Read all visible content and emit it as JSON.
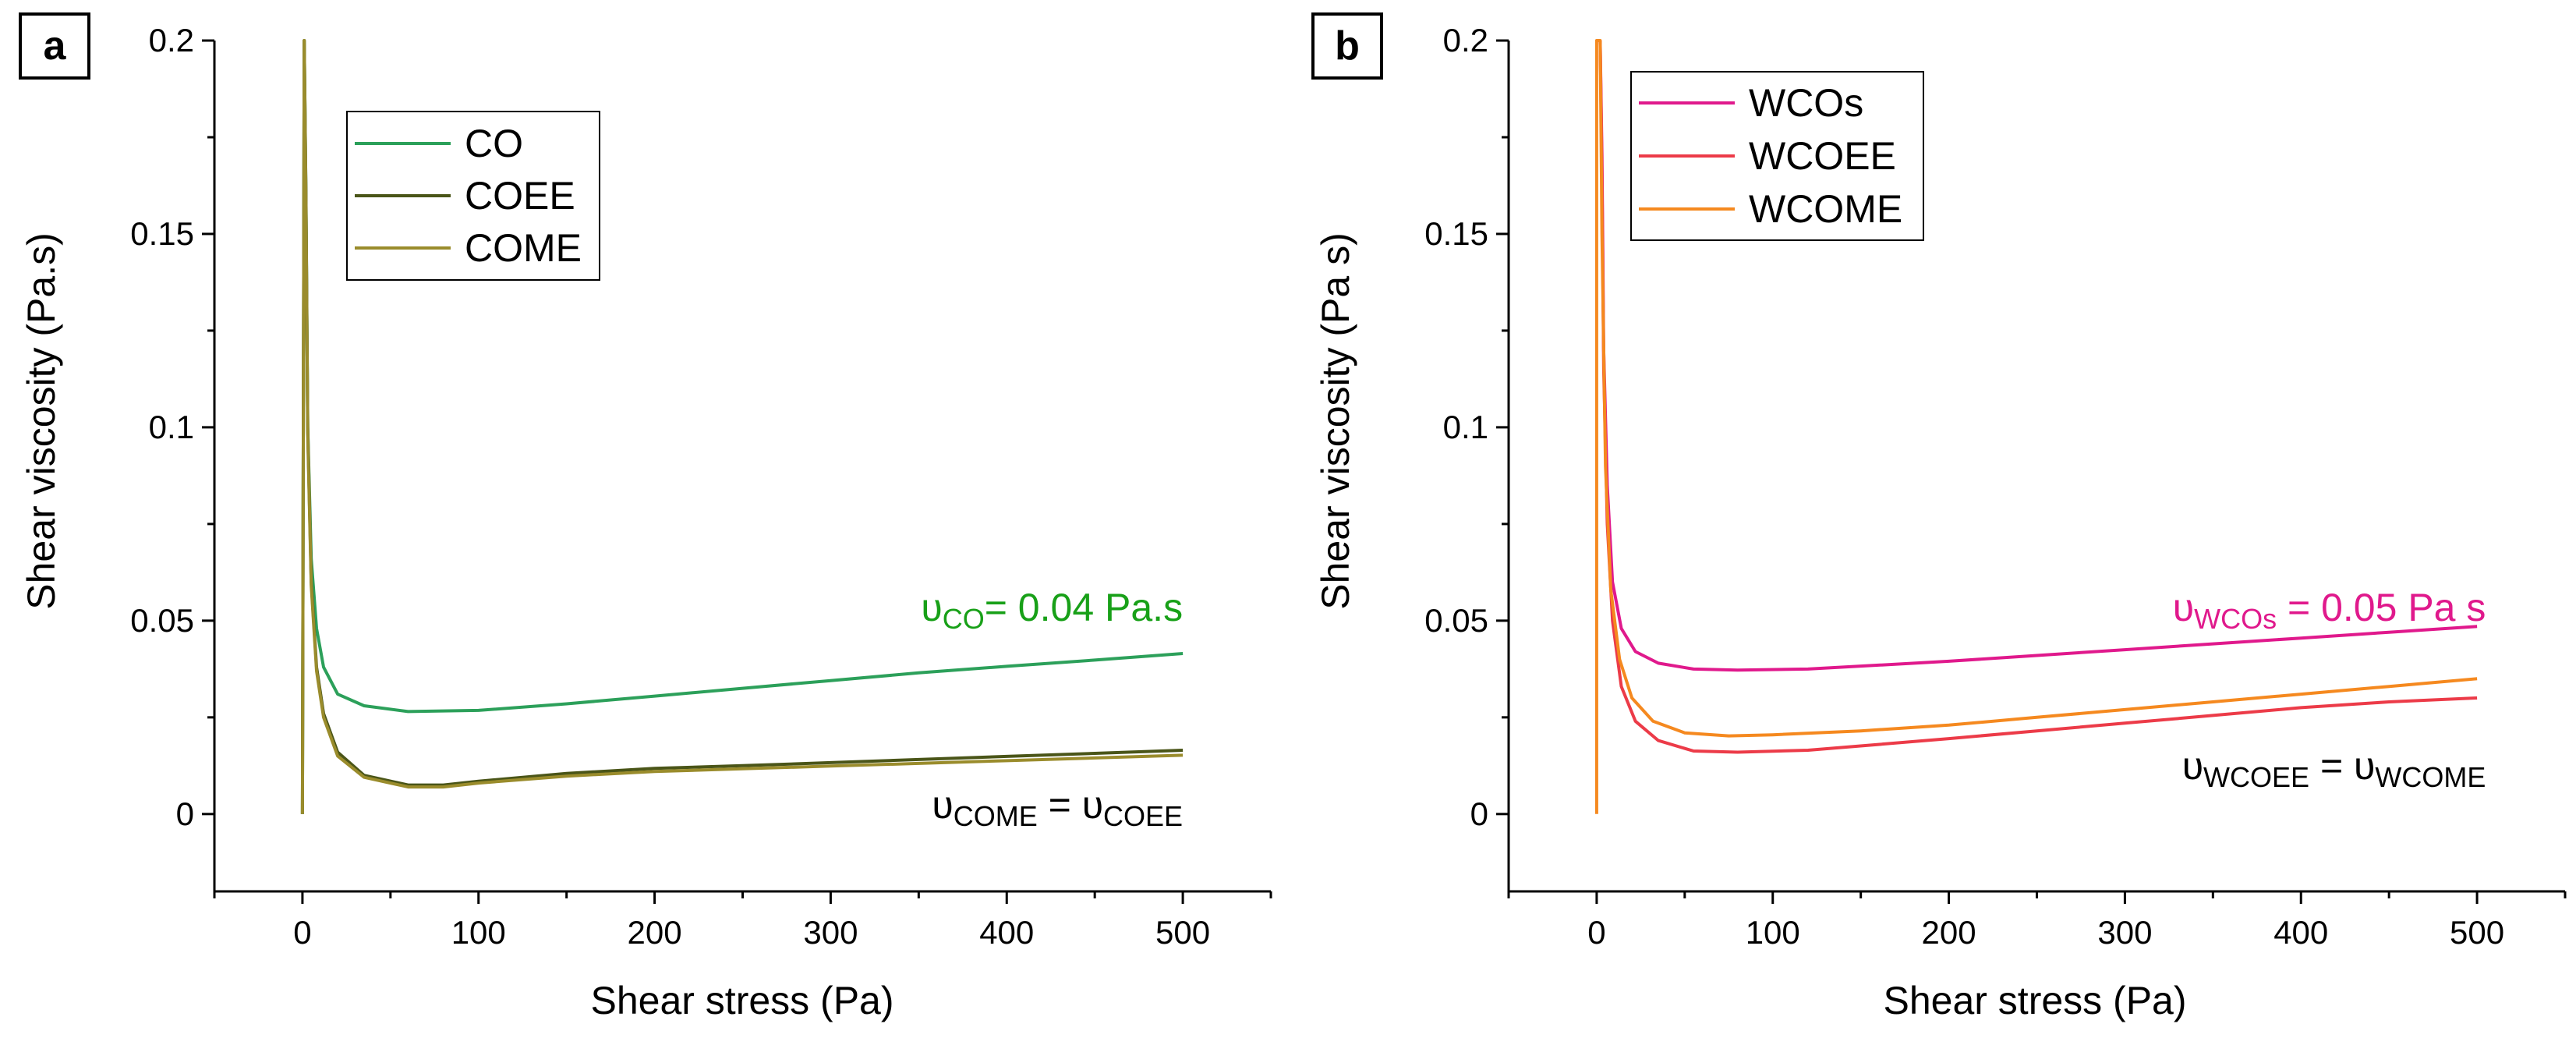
{
  "figure": {
    "ylabel_a": "Shear viscosity (Pa.s)",
    "ylabel_b": "Shear viscosity (Pa s)"
  },
  "chart_data": [
    {
      "type": "line",
      "panel_label": "a",
      "xlabel": "Shear stress (Pa)",
      "ylabel": "Shear viscosity (Pa.s)",
      "xlim": [
        -50,
        550
      ],
      "ylim": [
        -0.02,
        0.2
      ],
      "x_ticks": [
        0,
        100,
        200,
        300,
        400,
        500
      ],
      "x_tick_labels": [
        "0",
        "100",
        "200",
        "300",
        "400",
        "500"
      ],
      "y_ticks": [
        0,
        0.05,
        0.1,
        0.15,
        0.2
      ],
      "y_tick_labels": [
        "0",
        "0.05",
        "0.1",
        "0.15",
        "0.2"
      ],
      "legend": {
        "position": "top-left",
        "entries": [
          "CO",
          "COEE",
          "COME"
        ]
      },
      "series": [
        {
          "name": "CO",
          "color": "#2ca05a",
          "x": [
            0,
            1,
            2,
            3,
            5,
            8,
            12,
            20,
            35,
            60,
            100,
            150,
            200,
            250,
            300,
            350,
            400,
            450,
            500
          ],
          "y": [
            0.0,
            0.2,
            0.16,
            0.1,
            0.066,
            0.048,
            0.038,
            0.031,
            0.028,
            0.0265,
            0.0268,
            0.0285,
            0.0305,
            0.0325,
            0.0345,
            0.0365,
            0.0382,
            0.0398,
            0.0415
          ]
        },
        {
          "name": "COEE",
          "color": "#4a5518",
          "x": [
            0,
            1,
            2,
            3,
            5,
            8,
            12,
            20,
            35,
            60,
            80,
            100,
            150,
            200,
            250,
            300,
            350,
            400,
            450,
            500
          ],
          "y": [
            0.0,
            0.2,
            0.16,
            0.1,
            0.06,
            0.038,
            0.026,
            0.016,
            0.01,
            0.0075,
            0.0075,
            0.0085,
            0.0105,
            0.0118,
            0.0125,
            0.0133,
            0.0141,
            0.0149,
            0.0157,
            0.0165
          ]
        },
        {
          "name": "COME",
          "color": "#9a8c2c",
          "x": [
            0,
            1,
            2,
            3,
            5,
            8,
            12,
            20,
            35,
            60,
            80,
            100,
            150,
            200,
            250,
            300,
            350,
            400,
            450,
            500
          ],
          "y": [
            0.0,
            0.2,
            0.158,
            0.098,
            0.059,
            0.037,
            0.025,
            0.015,
            0.0095,
            0.007,
            0.007,
            0.008,
            0.0098,
            0.011,
            0.0117,
            0.0124,
            0.0131,
            0.0138,
            0.0145,
            0.0152
          ]
        }
      ],
      "annotations": [
        {
          "color": "#18a018",
          "greek": "υ",
          "sub": "CO",
          "rest": "= 0.04 Pa.s",
          "x": 400,
          "y": 0.05
        },
        {
          "color": "#000000",
          "greek": "υ",
          "sub": "COME",
          "mid": " = ",
          "greek2": "υ",
          "sub2": "COEE",
          "x": 400,
          "y": -0.001
        }
      ]
    },
    {
      "type": "line",
      "panel_label": "b",
      "xlabel": "Shear stress (Pa)",
      "ylabel": "Shear viscosity (Pa s)",
      "xlim": [
        -50,
        550
      ],
      "ylim": [
        -0.02,
        0.2
      ],
      "x_ticks": [
        0,
        100,
        200,
        300,
        400,
        500
      ],
      "x_tick_labels": [
        "0",
        "100",
        "200",
        "300",
        "400",
        "500"
      ],
      "y_ticks": [
        0,
        0.05,
        0.1,
        0.15,
        0.2
      ],
      "y_tick_labels": [
        "0",
        "0.05",
        "0.1",
        "0.15",
        "0.2"
      ],
      "legend": {
        "position": "top-left",
        "entries": [
          "WCOs",
          "WCOEE",
          "WCOME"
        ]
      },
      "series": [
        {
          "name": "WCOs",
          "color": "#e0198c",
          "x": [
            2,
            3,
            4,
            6,
            9,
            14,
            22,
            35,
            55,
            80,
            120,
            160,
            200,
            250,
            300,
            350,
            400,
            450,
            500
          ],
          "y": [
            0.2,
            0.17,
            0.12,
            0.085,
            0.06,
            0.048,
            0.042,
            0.039,
            0.0375,
            0.0372,
            0.0375,
            0.0385,
            0.0395,
            0.041,
            0.0425,
            0.044,
            0.0455,
            0.047,
            0.0485
          ]
        },
        {
          "name": "WCOEE",
          "color": "#ec3b48",
          "x": [
            2,
            3,
            4,
            6,
            9,
            14,
            22,
            35,
            55,
            80,
            120,
            160,
            200,
            250,
            300,
            350,
            400,
            450,
            500
          ],
          "y": [
            0.2,
            0.165,
            0.115,
            0.075,
            0.05,
            0.033,
            0.024,
            0.019,
            0.0163,
            0.016,
            0.0165,
            0.018,
            0.0195,
            0.0215,
            0.0235,
            0.0255,
            0.0275,
            0.029,
            0.03
          ]
        },
        {
          "name": "WCOME",
          "color": "#f5891f",
          "x": [
            0,
            0,
            0.5,
            1,
            2,
            3,
            5,
            8,
            13,
            20,
            32,
            50,
            75,
            100,
            150,
            200,
            250,
            300,
            350,
            400,
            450,
            500
          ],
          "y": [
            0.0,
            0.2,
            0.2,
            0.2,
            0.2,
            0.15,
            0.09,
            0.058,
            0.04,
            0.03,
            0.024,
            0.021,
            0.0202,
            0.0205,
            0.0215,
            0.023,
            0.025,
            0.027,
            0.029,
            0.031,
            0.033,
            0.035
          ]
        }
      ],
      "annotations": [
        {
          "color": "#e0198c",
          "greek": "υ",
          "sub": "WCOs",
          "rest": " = 0.05 Pa s",
          "x": 400,
          "y": 0.05
        },
        {
          "color": "#000000",
          "greek": "υ",
          "sub": "WCOEE",
          "mid": " = ",
          "greek2": "υ",
          "sub2": "WCOME",
          "x": 400,
          "y": 0.009
        }
      ]
    }
  ]
}
